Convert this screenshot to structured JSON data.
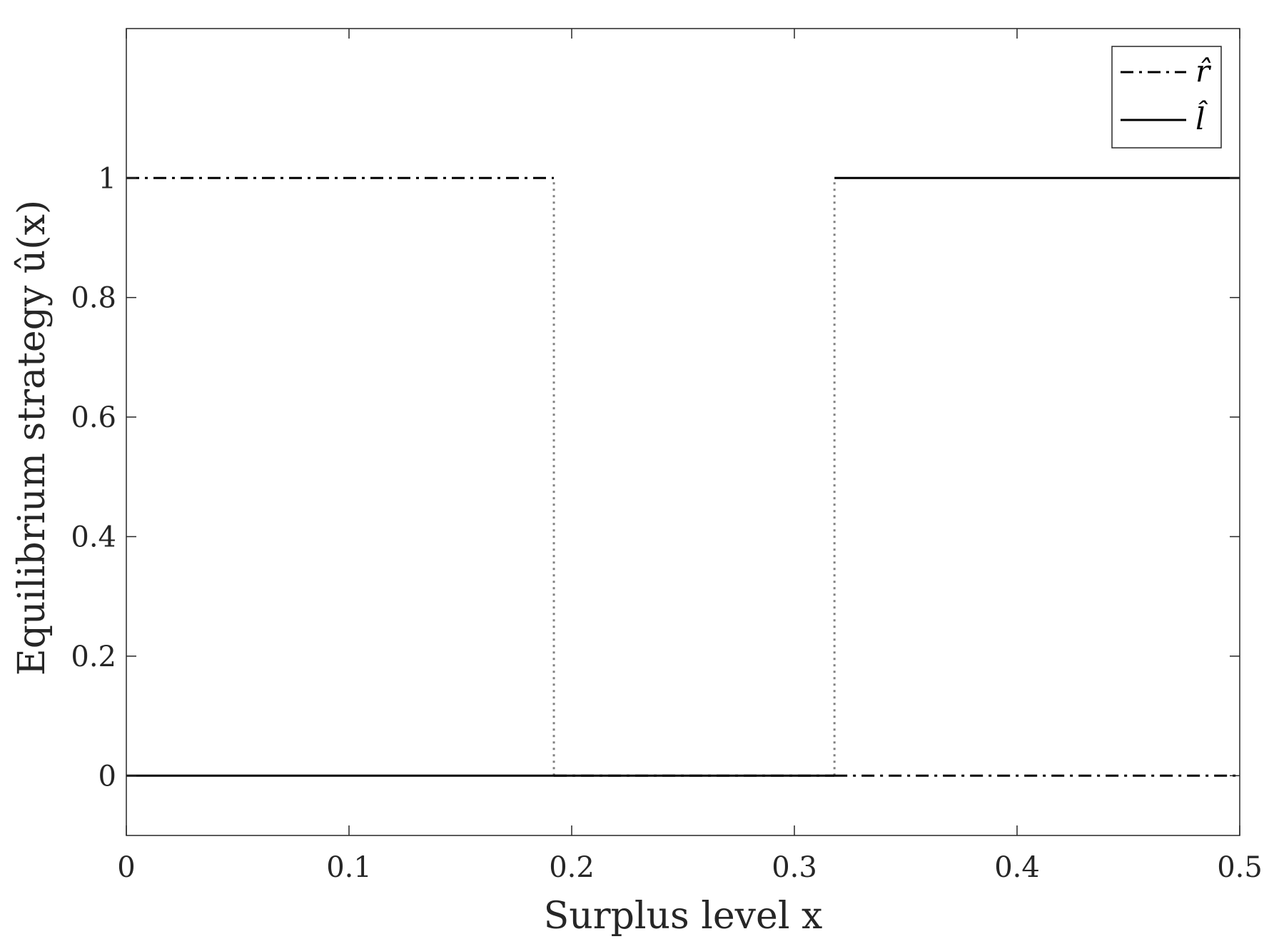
{
  "chart_data": {
    "type": "line",
    "xlabel": "Surplus level x",
    "ylabel": "Equilibrium strategy û(x)",
    "xlim": [
      0,
      0.5
    ],
    "ylim": [
      -0.1,
      1.25
    ],
    "x_ticks": [
      0,
      0.1,
      0.2,
      0.3,
      0.4,
      0.5
    ],
    "x_tick_labels": [
      "0",
      "0.1",
      "0.2",
      "0.3",
      "0.4",
      "0.5"
    ],
    "y_ticks": [
      0,
      0.2,
      0.4,
      0.6,
      0.8,
      1
    ],
    "y_tick_labels": [
      "0",
      "0.2",
      "0.4",
      "0.6",
      "0.8",
      "1"
    ],
    "legend_position": "top-right",
    "grid": false,
    "series": [
      {
        "name": "r̂",
        "line_style": "dash-dot",
        "color": "#000000",
        "points": [
          [
            0,
            1
          ],
          [
            0.192,
            1
          ],
          [
            0.192,
            0
          ],
          [
            0.318,
            0
          ],
          [
            0.318,
            0
          ],
          [
            0.5,
            0
          ]
        ]
      },
      {
        "name": "l̂",
        "line_style": "solid",
        "color": "#000000",
        "points": [
          [
            0,
            0
          ],
          [
            0.318,
            0
          ],
          [
            0.318,
            1
          ],
          [
            0.5,
            1
          ]
        ]
      }
    ],
    "switch_lines": [
      {
        "x": 0.192,
        "y_from": 0,
        "y_to": 1,
        "line_style": "dotted",
        "color": "#808080"
      },
      {
        "x": 0.318,
        "y_from": 0,
        "y_to": 1,
        "line_style": "dotted",
        "color": "#808080"
      }
    ]
  }
}
